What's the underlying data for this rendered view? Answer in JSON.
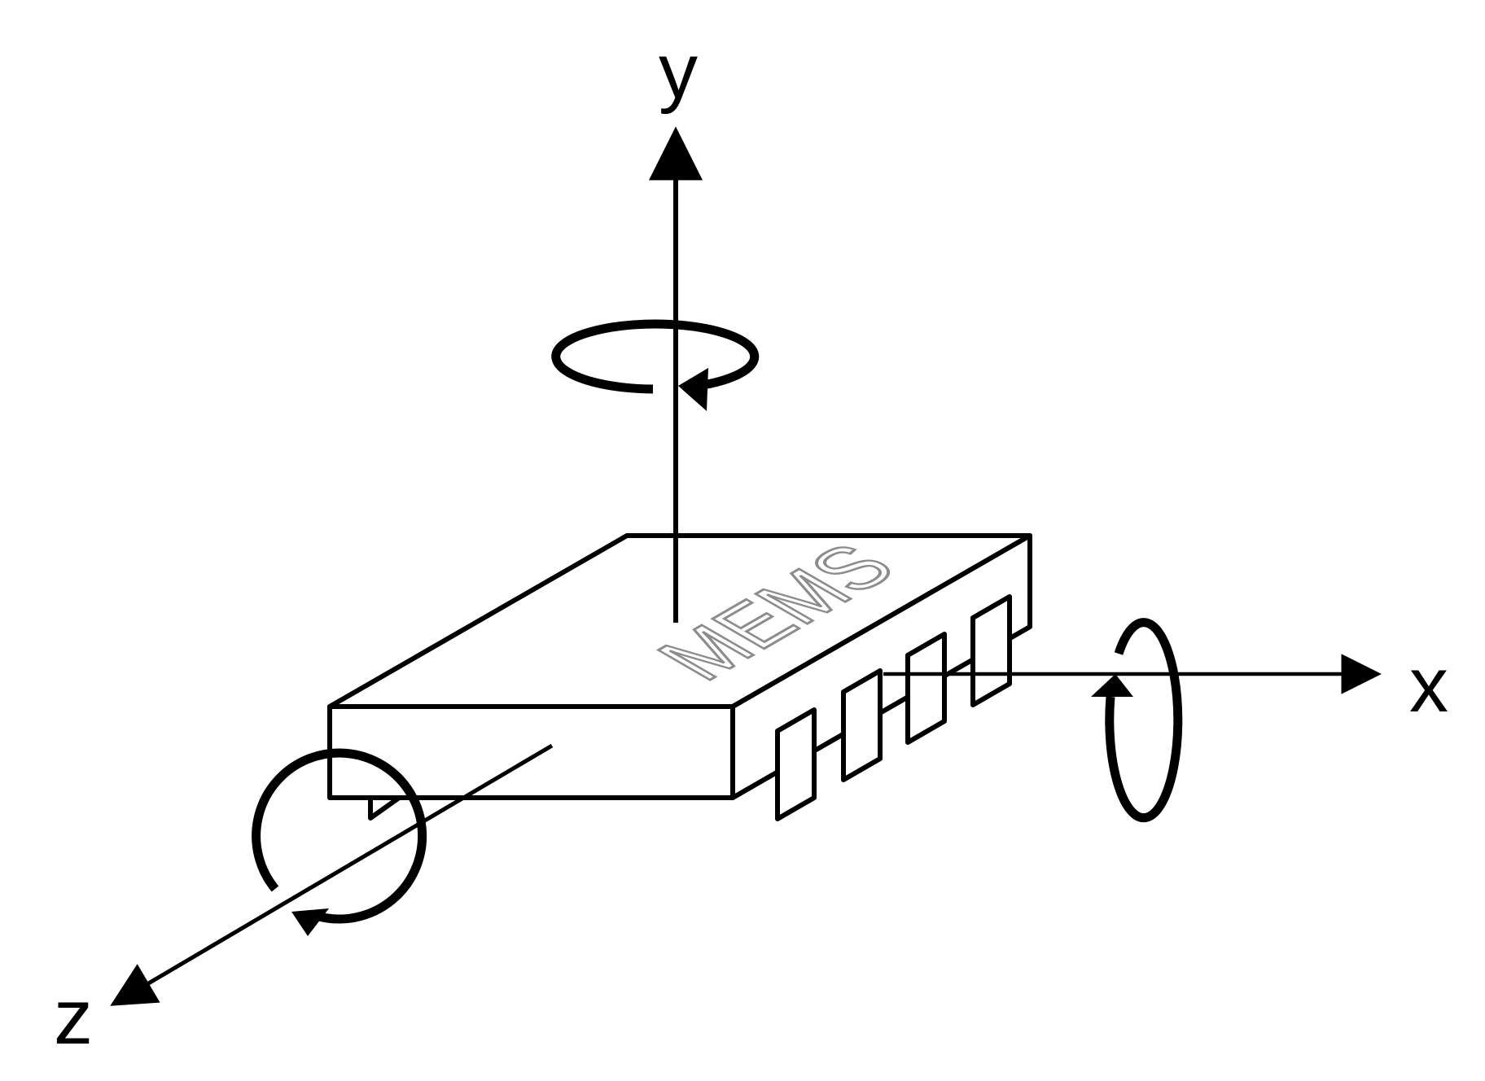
{
  "diagram": {
    "chip_label": "MEMS",
    "axes": {
      "x_label": "x",
      "y_label": "y",
      "z_label": "z"
    },
    "colors": {
      "stroke": "#000000",
      "chip_text": "#8c8c8c",
      "background": "#ffffff"
    },
    "icons": [
      "x-rotation-arrow-icon",
      "y-rotation-arrow-icon",
      "z-rotation-arrow-icon"
    ]
  }
}
